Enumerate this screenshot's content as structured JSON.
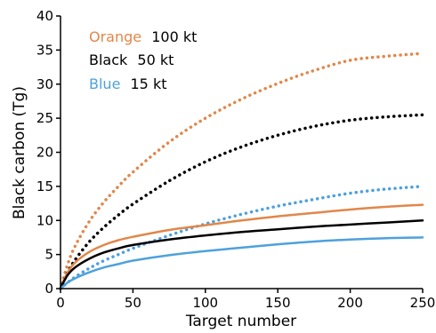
{
  "chart_data": {
    "type": "line",
    "xlabel": "Target number",
    "ylabel": "Black carbon (Tg)",
    "xlim": [
      0,
      250
    ],
    "ylim": [
      0,
      40
    ],
    "x_ticks": [
      0,
      50,
      100,
      150,
      200,
      250
    ],
    "y_ticks": [
      0,
      5,
      10,
      15,
      20,
      25,
      30,
      35,
      40
    ],
    "x_tick_labels": [
      "0",
      "50",
      "100",
      "150",
      "200",
      "250"
    ],
    "y_tick_labels": [
      "0",
      "5",
      "10",
      "15",
      "20",
      "25",
      "30",
      "35",
      "40"
    ],
    "grid": false,
    "legend_placement": "top-left",
    "legend": [
      {
        "color_word": "Orange",
        "yield": "100 kt",
        "color": "#e0874a"
      },
      {
        "color_word": "Black",
        "yield": "50 kt",
        "color": "#000000"
      },
      {
        "color_word": "Blue",
        "yield": "15 kt",
        "color": "#4ea1dc"
      }
    ],
    "x": [
      0,
      1,
      5,
      10,
      20,
      30,
      40,
      50,
      75,
      100,
      125,
      150,
      175,
      200,
      225,
      250
    ],
    "series": [
      {
        "color": "#e0874a",
        "style": "dotted",
        "values": [
          0,
          0.8,
          3.6,
          6.2,
          9.9,
          12.7,
          15.0,
          17.1,
          21.5,
          25.0,
          27.8,
          30.1,
          32.0,
          33.5,
          34.1,
          34.5
        ]
      },
      {
        "color": "#000000",
        "style": "dotted",
        "values": [
          0,
          0.5,
          2.4,
          4.2,
          6.9,
          9.0,
          10.8,
          12.4,
          15.8,
          18.6,
          20.8,
          22.5,
          23.8,
          24.7,
          25.2,
          25.5
        ]
      },
      {
        "color": "#4ea1dc",
        "style": "dotted",
        "values": [
          0,
          0.2,
          0.9,
          1.7,
          3.0,
          4.1,
          5.0,
          5.9,
          7.8,
          9.5,
          10.9,
          12.1,
          13.1,
          14.0,
          14.6,
          15.0
        ]
      },
      {
        "color": "#e0874a",
        "style": "solid",
        "values": [
          0,
          0.6,
          2.4,
          3.8,
          5.4,
          6.4,
          7.1,
          7.6,
          8.6,
          9.3,
          10.0,
          10.6,
          11.1,
          11.6,
          12.0,
          12.3
        ]
      },
      {
        "color": "#000000",
        "style": "solid",
        "values": [
          0,
          0.5,
          2.0,
          3.1,
          4.4,
          5.3,
          5.9,
          6.4,
          7.2,
          7.8,
          8.3,
          8.7,
          9.1,
          9.4,
          9.7,
          10.0
        ]
      },
      {
        "color": "#4ea1dc",
        "style": "solid",
        "values": [
          0,
          0.2,
          0.9,
          1.5,
          2.4,
          3.1,
          3.6,
          4.1,
          4.9,
          5.5,
          6.0,
          6.5,
          6.9,
          7.2,
          7.4,
          7.5
        ]
      }
    ]
  }
}
